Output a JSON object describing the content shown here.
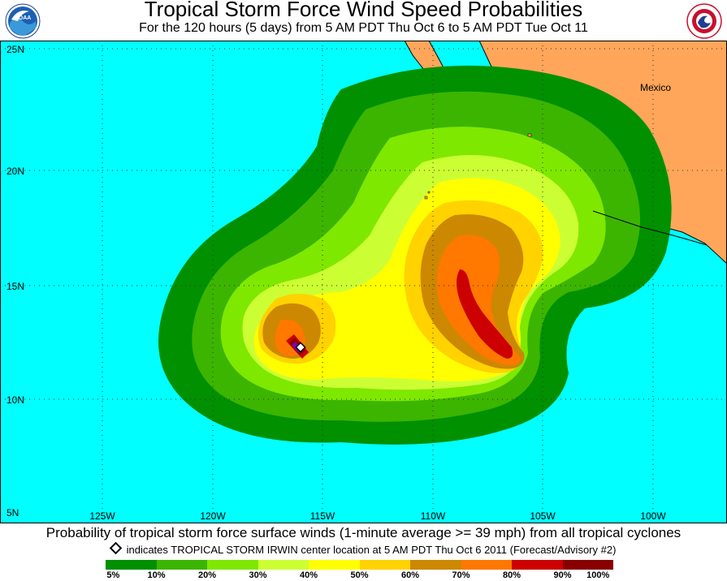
{
  "header": {
    "title": "Tropical Storm Force Wind Speed Probabilities",
    "subtitle": "For the 120 hours (5 days) from 5 AM PDT Thu Oct 6 to 5 AM PDT Tue Oct 11",
    "left_logo": "NOAA",
    "right_logo": "National Weather Service"
  },
  "map": {
    "ocean_color": "#00FFFF",
    "land_color": "#FFA65A",
    "land_label": "Mexico",
    "lat_labels": [
      "25N",
      "20N",
      "15N",
      "10N",
      "5N"
    ],
    "lon_labels": [
      "125W",
      "120W",
      "115W",
      "110W",
      "105W",
      "100W"
    ],
    "storm_center": {
      "lat": 12.2,
      "lon": 116.0
    }
  },
  "caption": "Probability of tropical storm force surface winds (1-minute average >= 39 mph) from all tropical cyclones",
  "note": "indicates TROPICAL STORM IRWIN center location at 5 AM PDT Thu Oct 6 2011 (Forecast/Advisory #2)",
  "legend": {
    "labels": [
      "5%",
      "10%",
      "20%",
      "30%",
      "40%",
      "50%",
      "60%",
      "70%",
      "80%",
      "90%",
      "100%"
    ],
    "colors": [
      "#009000",
      "#3CB500",
      "#7FE800",
      "#CCFF33",
      "#FFFF00",
      "#FFD200",
      "#CC8800",
      "#FF7800",
      "#CC0000",
      "#880000",
      "#8800AA"
    ]
  }
}
